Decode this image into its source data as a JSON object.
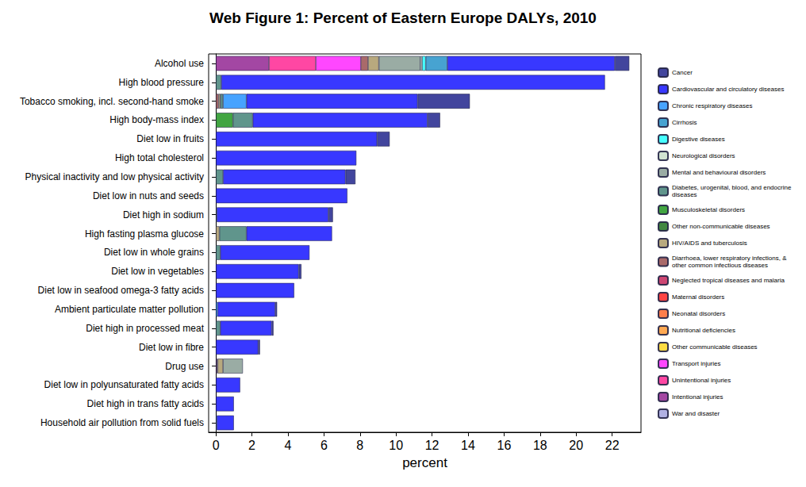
{
  "chart_data": {
    "type": "bar",
    "title": "Web Figure 1: Percent of Eastern Europe DALYs, 2010",
    "x_label": "percent",
    "orientation": "horizontal",
    "stacked": true,
    "grid": false,
    "legend": "right",
    "xlim": [
      -0.4,
      23.6
    ],
    "xticks": [
      0,
      2,
      4,
      6,
      8,
      10,
      12,
      14,
      16,
      18,
      20,
      22
    ],
    "categories": [
      "Alcohol use",
      "High blood pressure",
      "Tobacco smoking, incl. second-hand smoke",
      "High body-mass index",
      "Diet low in fruits",
      "High total cholesterol",
      "Physical inactivity and low physical activity",
      "Diet low in nuts and seeds",
      "Diet high in sodium",
      "High fasting plasma glucose",
      "Diet low in whole grains",
      "Diet low in vegetables",
      "Diet low in seafood omega-3 fatty acids",
      "Ambient particulate matter pollution",
      "Diet high in processed meat",
      "Diet low in fibre",
      "Drug use",
      "Diet low in polyunsaturated fatty acids",
      "Diet high in trans fatty acids",
      "Household air pollution from solid fuels"
    ],
    "series": [
      {
        "name": "Cancer",
        "color": "#2e3192",
        "values": [
          0.8,
          null,
          2.9,
          0.7,
          0.7,
          null,
          0.55,
          null,
          0.25,
          null,
          null,
          0.15,
          null,
          0.1,
          0.1,
          0.1,
          null,
          null,
          null,
          null
        ]
      },
      {
        "name": "Cardiovascular and circulatory diseases",
        "color": "#2222ff",
        "values": [
          9.3,
          21.3,
          9.5,
          9.7,
          8.95,
          7.8,
          6.8,
          7.3,
          6.2,
          4.75,
          4.95,
          4.6,
          4.35,
          3.2,
          2.85,
          2.35,
          null,
          1.35,
          1.0,
          0.95
        ]
      },
      {
        "name": "Chronic respiratory diseases",
        "color": "#3399ff",
        "values": [
          null,
          null,
          1.3,
          null,
          null,
          null,
          null,
          null,
          null,
          null,
          null,
          null,
          null,
          0.1,
          null,
          null,
          null,
          null,
          null,
          0.05
        ]
      },
      {
        "name": "Cirrhosis",
        "color": "#3399cc",
        "values": [
          1.2,
          null,
          null,
          null,
          null,
          null,
          null,
          null,
          null,
          null,
          null,
          null,
          null,
          null,
          null,
          null,
          null,
          null,
          null,
          null
        ]
      },
      {
        "name": "Digestive diseases",
        "color": "#33ffff",
        "values": [
          0.2,
          null,
          null,
          null,
          null,
          null,
          null,
          null,
          null,
          null,
          null,
          null,
          null,
          null,
          null,
          null,
          null,
          null,
          null,
          null
        ]
      },
      {
        "name": "Neurological disorders",
        "color": "#cce0cc",
        "values": [
          0.1,
          null,
          null,
          null,
          null,
          null,
          null,
          null,
          null,
          null,
          null,
          null,
          null,
          null,
          null,
          null,
          null,
          null,
          null,
          null
        ]
      },
      {
        "name": "Mental and behavioural disorders",
        "color": "#8fa39a",
        "values": [
          2.3,
          null,
          null,
          null,
          null,
          null,
          null,
          null,
          null,
          null,
          null,
          null,
          null,
          null,
          null,
          null,
          1.1,
          null,
          null,
          null
        ]
      },
      {
        "name": "Diabetes, urogenital, blood, and endocrine diseases",
        "color": "#4f8a80",
        "values": [
          null,
          0.3,
          0.15,
          1.1,
          null,
          null,
          0.4,
          null,
          0.05,
          1.5,
          0.25,
          null,
          null,
          null,
          0.25,
          null,
          null,
          null,
          null,
          null
        ]
      },
      {
        "name": "Musculoskeletal disorders",
        "color": "#2e9b2e",
        "values": [
          null,
          null,
          null,
          0.95,
          null,
          null,
          null,
          null,
          null,
          null,
          null,
          null,
          null,
          null,
          null,
          null,
          null,
          null,
          null,
          null
        ]
      },
      {
        "name": "Other non-communicable diseases",
        "color": "#2e7a2e",
        "values": [
          null,
          null,
          null,
          null,
          null,
          null,
          null,
          null,
          null,
          null,
          null,
          null,
          null,
          null,
          null,
          null,
          null,
          null,
          null,
          null
        ]
      },
      {
        "name": "HIV/AIDS and tuberculosis",
        "color": "#b0a070",
        "values": [
          0.6,
          null,
          0.1,
          null,
          null,
          null,
          null,
          null,
          null,
          0.2,
          null,
          null,
          null,
          null,
          null,
          null,
          0.3,
          null,
          null,
          null
        ]
      },
      {
        "name": "Diarrhoea, lower respiratory infections, & other common infectious diseases",
        "color": "#a05a5a",
        "values": [
          0.4,
          null,
          0.15,
          null,
          null,
          null,
          null,
          null,
          null,
          null,
          null,
          null,
          null,
          null,
          null,
          null,
          0.05,
          null,
          null,
          null
        ]
      },
      {
        "name": "Neglected tropical diseases and malaria",
        "color": "#c83264",
        "values": [
          null,
          null,
          null,
          null,
          null,
          null,
          null,
          null,
          null,
          null,
          null,
          null,
          null,
          null,
          null,
          null,
          null,
          null,
          null,
          null
        ]
      },
      {
        "name": "Maternal disorders",
        "color": "#ff3030",
        "values": [
          null,
          null,
          null,
          null,
          null,
          null,
          null,
          null,
          null,
          null,
          null,
          null,
          null,
          null,
          null,
          null,
          null,
          null,
          null,
          null
        ]
      },
      {
        "name": "Neonatal disorders",
        "color": "#ff7038",
        "values": [
          null,
          null,
          null,
          null,
          null,
          null,
          null,
          null,
          null,
          null,
          null,
          null,
          null,
          null,
          null,
          null,
          null,
          null,
          null,
          null
        ]
      },
      {
        "name": "Nutritional deficiencies",
        "color": "#ffa040",
        "values": [
          null,
          null,
          null,
          null,
          null,
          null,
          null,
          null,
          null,
          null,
          null,
          null,
          null,
          null,
          null,
          null,
          null,
          null,
          null,
          null
        ]
      },
      {
        "name": "Other communicable diseases",
        "color": "#ffd830",
        "values": [
          null,
          null,
          null,
          null,
          null,
          null,
          null,
          null,
          null,
          null,
          null,
          null,
          null,
          null,
          null,
          null,
          null,
          null,
          null,
          null
        ]
      },
      {
        "name": "Transport injuries",
        "color": "#ff33ff",
        "values": [
          2.5,
          null,
          null,
          null,
          null,
          null,
          null,
          null,
          null,
          null,
          null,
          null,
          null,
          null,
          null,
          null,
          null,
          null,
          null,
          null
        ]
      },
      {
        "name": "Unintentional injuries",
        "color": "#ff3399",
        "values": [
          2.6,
          null,
          null,
          null,
          null,
          null,
          null,
          null,
          null,
          null,
          null,
          null,
          null,
          null,
          null,
          null,
          null,
          null,
          null,
          null
        ]
      },
      {
        "name": "Intentional injuries",
        "color": "#993399",
        "values": [
          2.95,
          null,
          null,
          null,
          null,
          null,
          null,
          null,
          null,
          null,
          null,
          null,
          null,
          null,
          null,
          null,
          0.05,
          null,
          null,
          null
        ]
      },
      {
        "name": "War and disaster",
        "color": "#a8a8e0",
        "values": [
          null,
          null,
          null,
          null,
          null,
          null,
          null,
          null,
          null,
          null,
          null,
          null,
          null,
          null,
          null,
          null,
          null,
          null,
          null,
          null
        ]
      }
    ]
  }
}
